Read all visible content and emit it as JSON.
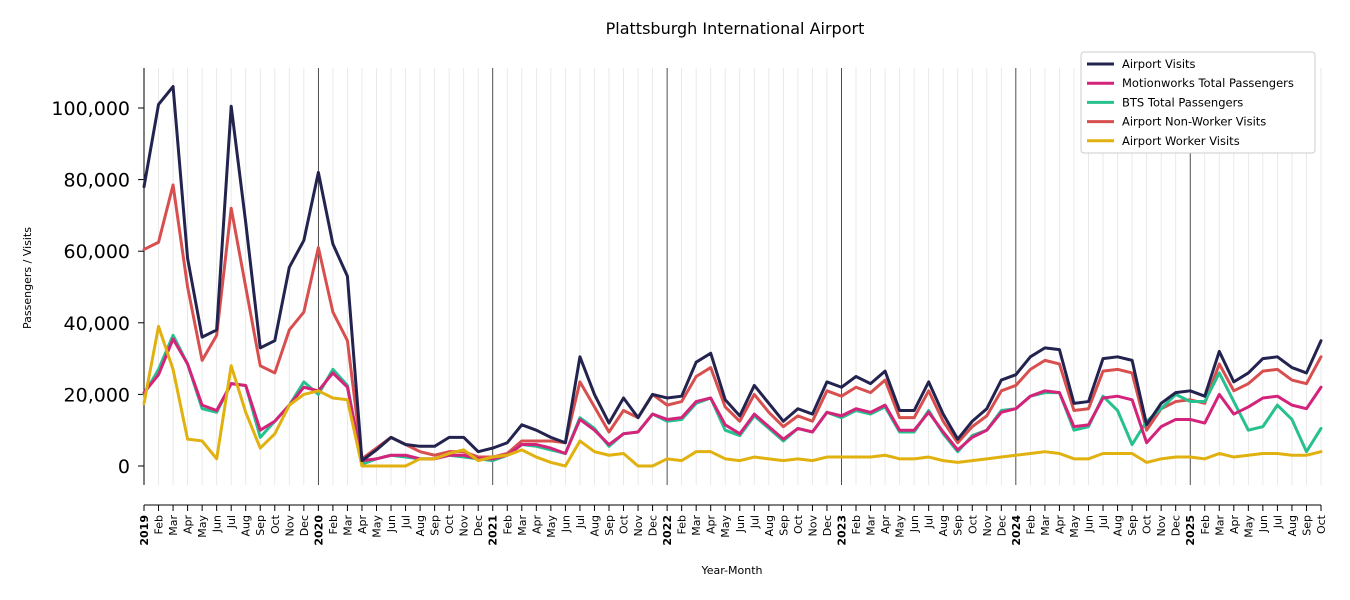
{
  "chart_data": {
    "type": "line",
    "title": "Plattsburgh International Airport",
    "xlabel": "Year-Month",
    "ylabel": "Passengers / Visits",
    "ylim": [
      -5000,
      110000
    ],
    "yticks": [
      0,
      20000,
      40000,
      60000,
      80000,
      100000
    ],
    "ytick_labels": [
      "0",
      "20,000",
      "40,000",
      "60,000",
      "80,000",
      "100,000"
    ],
    "grid": "vertical, monthly",
    "legend_position": "top-right",
    "x": [
      "2019",
      "Feb",
      "Mar",
      "Apr",
      "May",
      "Jun",
      "Jul",
      "Aug",
      "Sep",
      "Oct",
      "Nov",
      "Dec",
      "2020",
      "Feb",
      "Mar",
      "Apr",
      "May",
      "Jun",
      "Jul",
      "Aug",
      "Sep",
      "Oct",
      "Nov",
      "Dec",
      "2021",
      "Feb",
      "Mar",
      "Apr",
      "May",
      "Jun",
      "Jul",
      "Aug",
      "Sep",
      "Oct",
      "Nov",
      "Dec",
      "2022",
      "Feb",
      "Mar",
      "Apr",
      "May",
      "Jun",
      "Jul",
      "Aug",
      "Sep",
      "Oct",
      "Nov",
      "Dec",
      "2023",
      "Feb",
      "Mar",
      "Apr",
      "May",
      "Jun",
      "Jul",
      "Aug",
      "Sep",
      "Oct",
      "Nov",
      "Dec",
      "2024",
      "Feb",
      "Mar",
      "Apr",
      "May",
      "Jun",
      "Jul",
      "Aug",
      "Sep",
      "Oct",
      "Nov",
      "Dec",
      "2025",
      "Feb",
      "Mar",
      "Apr",
      "May",
      "Jun",
      "Jul",
      "Aug",
      "Sep",
      "Oct"
    ],
    "year_tick_indices": [
      0,
      12,
      24,
      36,
      48,
      60,
      72
    ],
    "series": [
      {
        "name": "Airport Visits",
        "color": "#23234f",
        "values": [
          78000,
          101000,
          106000,
          58000,
          36000,
          38000,
          100500,
          68000,
          33000,
          35000,
          55500,
          63000,
          82000,
          62000,
          53000,
          1500,
          4500,
          8000,
          6000,
          5500,
          5500,
          8000,
          8000,
          4000,
          5000,
          6500,
          11500,
          10000,
          8000,
          6500,
          30500,
          20000,
          12000,
          19000,
          13500,
          20000,
          19000,
          19500,
          29000,
          31500,
          18500,
          14000,
          22500,
          17500,
          12500,
          16000,
          14500,
          23500,
          22000,
          25000,
          23000,
          26500,
          15500,
          15500,
          23500,
          14500,
          7500,
          12500,
          16000,
          24000,
          25500,
          30500,
          33000,
          32500,
          17500,
          18000,
          30000,
          30500,
          29500,
          11500,
          17500,
          20500,
          21000,
          19500,
          32000,
          23500,
          26000,
          30000,
          30500,
          27500,
          26000,
          35000
        ]
      },
      {
        "name": "Motionworks Total Passengers",
        "color": "#d4237b",
        "values": [
          20500,
          25500,
          35500,
          28500,
          17000,
          15500,
          23000,
          22500,
          10000,
          12500,
          17000,
          22000,
          21000,
          26000,
          22000,
          1500,
          2000,
          3000,
          3000,
          2000,
          2000,
          3000,
          3000,
          2000,
          2000,
          3000,
          6000,
          6000,
          5000,
          3500,
          13000,
          10000,
          6000,
          9000,
          9500,
          14500,
          13000,
          13500,
          18000,
          19000,
          11500,
          9000,
          14500,
          11000,
          7500,
          10500,
          9500,
          15000,
          14000,
          16000,
          15000,
          17000,
          10000,
          10000,
          15000,
          9500,
          4500,
          8000,
          10000,
          15000,
          16000,
          19500,
          21000,
          20500,
          11000,
          11500,
          19000,
          19500,
          18500,
          6500,
          11000,
          13000,
          13000,
          12000,
          20000,
          14500,
          16500,
          19000,
          19500,
          17000,
          16000,
          22000
        ]
      },
      {
        "name": "BTS Total Passengers",
        "color": "#27c08f",
        "values": [
          20000,
          27000,
          36500,
          28500,
          16000,
          15000,
          23000,
          22500,
          8000,
          12500,
          17000,
          23500,
          20000,
          27000,
          22500,
          500,
          2000,
          3000,
          2500,
          2000,
          2000,
          3000,
          2500,
          2000,
          1500,
          3000,
          6000,
          5500,
          4500,
          3500,
          13500,
          10500,
          5500,
          9000,
          9500,
          14500,
          12500,
          13000,
          17500,
          19000,
          10000,
          8500,
          14000,
          10500,
          7000,
          10500,
          9500,
          15000,
          13500,
          15500,
          14500,
          16500,
          9500,
          9500,
          15500,
          9000,
          4000,
          8500,
          10000,
          15500,
          16000,
          19500,
          20500,
          20500,
          10000,
          11000,
          19500,
          15500,
          6000,
          12500,
          16000,
          20000,
          18000,
          18000,
          26000,
          18000,
          10000,
          11000,
          17000,
          13000,
          4000,
          10500
        ]
      },
      {
        "name": "Airport Non-Worker Visits",
        "color": "#d84f4f",
        "values": [
          60500,
          62500,
          78500,
          50000,
          29500,
          36500,
          72000,
          50000,
          28000,
          26000,
          38000,
          43000,
          61000,
          43000,
          35000,
          2000,
          5000,
          8000,
          6000,
          4000,
          3000,
          4000,
          4000,
          2500,
          2500,
          3500,
          7000,
          7000,
          7000,
          6500,
          23500,
          16500,
          9500,
          15500,
          13500,
          20000,
          17000,
          18000,
          25000,
          27500,
          16500,
          12500,
          20000,
          15000,
          11000,
          14000,
          12500,
          21000,
          19500,
          22000,
          20500,
          24000,
          13500,
          13500,
          21000,
          12500,
          6500,
          11000,
          14000,
          21000,
          22500,
          27000,
          29500,
          28500,
          15500,
          16000,
          26500,
          27000,
          26000,
          10000,
          16000,
          18000,
          18500,
          17500,
          28500,
          21000,
          23000,
          26500,
          27000,
          24000,
          23000,
          30500
        ]
      },
      {
        "name": "Airport Worker Visits",
        "color": "#e1b10f",
        "values": [
          17500,
          39000,
          27000,
          7500,
          7000,
          2000,
          28000,
          15000,
          5000,
          9000,
          17000,
          20000,
          21000,
          19000,
          18500,
          0,
          0,
          0,
          0,
          2000,
          2000,
          3500,
          4500,
          1500,
          2500,
          3000,
          4500,
          2500,
          1000,
          0,
          7000,
          4000,
          3000,
          3500,
          0,
          0,
          2000,
          1500,
          4000,
          4000,
          2000,
          1500,
          2500,
          2000,
          1500,
          2000,
          1500,
          2500,
          2500,
          2500,
          2500,
          3000,
          2000,
          2000,
          2500,
          1500,
          1000,
          1500,
          2000,
          2500,
          3000,
          3500,
          4000,
          3500,
          2000,
          2000,
          3500,
          3500,
          3500,
          1000,
          2000,
          2500,
          2500,
          2000,
          3500,
          2500,
          3000,
          3500,
          3500,
          3000,
          3000,
          4000
        ]
      }
    ]
  }
}
